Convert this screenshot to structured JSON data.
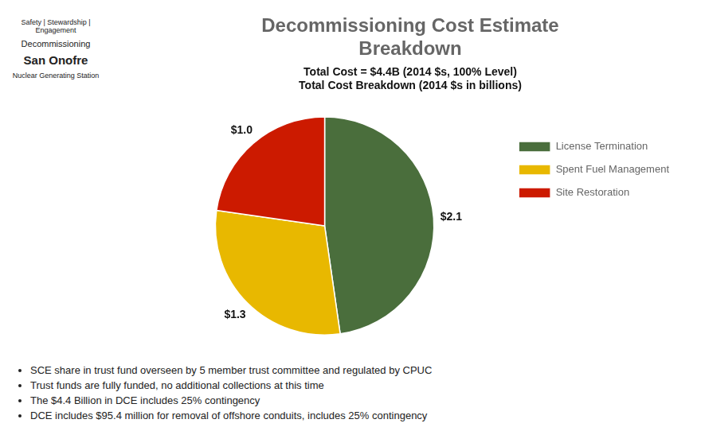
{
  "chart_data": {
    "type": "pie",
    "title": [
      "Decommissioning Cost Estimate",
      "Breakdown"
    ],
    "subtitle": [
      "Total Cost = $4.4B (2014 $s, 100% Level)",
      "Total Cost Breakdown (2014 $s in billions)"
    ],
    "categories": [
      "License Termination",
      "Spent Fuel Management",
      "Site Restoration"
    ],
    "values": [
      2.1,
      1.3,
      1.0
    ],
    "value_labels": [
      "$2.1",
      "$1.3",
      "$1.0"
    ],
    "colors": [
      "#4a6e3c",
      "#e8b800",
      "#cc1a00"
    ],
    "data_labels": true,
    "legend": "right",
    "annotations": [
      [
        "Safety | Stewardship | Engagement",
        "Decommissioning",
        "San Onofre",
        "Nuclear Generating Station"
      ],
      [
        "SCE share in trust fund overseen by 5 member trust committee and regulated by CPUC",
        "Trust funds are fully funded, no additional collections at this time",
        "The $4.4 Billion in DCE includes 25% contingency",
        "DCE includes $95.4 million for removal of offshore conduits, includes 25% contingency"
      ]
    ]
  }
}
